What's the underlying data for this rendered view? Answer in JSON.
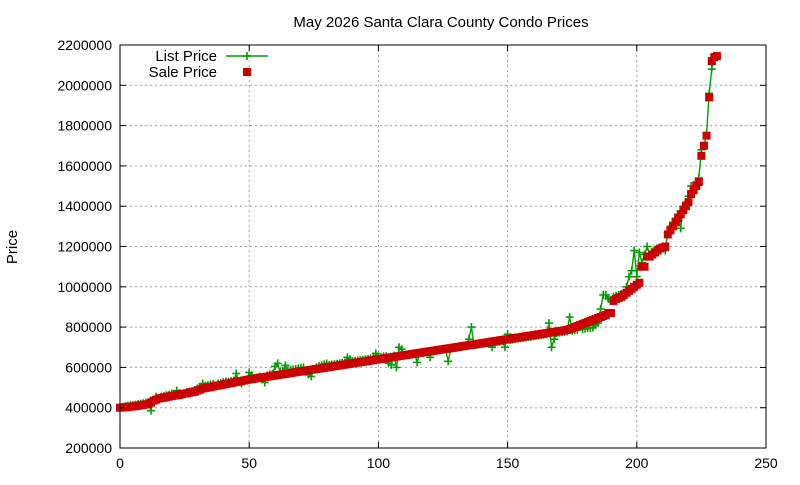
{
  "chart_data": {
    "type": "line",
    "title": "May 2026 Santa Clara County Condo Prices",
    "xlabel": "",
    "ylabel": "Price",
    "xlim": [
      0,
      250
    ],
    "ylim": [
      200000,
      2200000
    ],
    "x_ticks": [
      0,
      50,
      100,
      150,
      200,
      250
    ],
    "y_ticks": [
      200000,
      400000,
      600000,
      800000,
      1000000,
      1200000,
      1400000,
      1600000,
      1800000,
      2000000,
      2200000
    ],
    "grid": true,
    "legend_position": "top-left",
    "series": [
      {
        "name": "List Price",
        "style": "line-with-plus-markers",
        "color": "#009e00",
        "values": [
          400000,
          405000,
          408000,
          410000,
          412000,
          413000,
          415000,
          418000,
          420000,
          422000,
          425000,
          428000,
          385000,
          440000,
          455000,
          448000,
          455000,
          458000,
          462000,
          465000,
          470000,
          468000,
          485000,
          472000,
          462000,
          470000,
          478000,
          480000,
          482000,
          488000,
          495000,
          500000,
          520000,
          508000,
          512000,
          515000,
          518000,
          505000,
          520000,
          522000,
          528000,
          530000,
          528000,
          532000,
          533000,
          570000,
          530000,
          520000,
          535000,
          540000,
          575000,
          560000,
          548000,
          550000,
          555000,
          552000,
          525000,
          560000,
          565000,
          568000,
          605000,
          620000,
          578000,
          582000,
          610000,
          585000,
          588000,
          590000,
          592000,
          595000,
          598000,
          600000,
          578000,
          565000,
          555000,
          590000,
          600000,
          608000,
          610000,
          615000,
          620000,
          612000,
          614000,
          616000,
          618000,
          620000,
          622000,
          624000,
          650000,
          640000,
          630000,
          632000,
          634000,
          636000,
          638000,
          640000,
          642000,
          644000,
          646000,
          670000,
          650000,
          652000,
          654000,
          656000,
          620000,
          612000,
          658000,
          600000,
          700000,
          690000,
          662000,
          664000,
          666000,
          668000,
          670000,
          625000,
          672000,
          674000,
          676000,
          678000,
          650000,
          680000,
          682000,
          684000,
          686000,
          688000,
          690000,
          630000,
          692000,
          694000,
          696000,
          700000,
          702000,
          704000,
          706000,
          740000,
          800000,
          710000,
          712000,
          714000,
          716000,
          718000,
          720000,
          722000,
          700000,
          724000,
          726000,
          728000,
          730000,
          700000,
          765000,
          736000,
          738000,
          740000,
          742000,
          744000,
          746000,
          748000,
          750000,
          752000,
          754000,
          756000,
          758000,
          760000,
          762000,
          764000,
          820000,
          700000,
          740000,
          770000,
          772000,
          774000,
          776000,
          778000,
          850000,
          782000,
          784000,
          786000,
          800000,
          790000,
          792000,
          794000,
          796000,
          798000,
          810000,
          820000,
          890000,
          960000,
          960000,
          940000,
          930000,
          950000,
          955000,
          960000,
          965000,
          970000,
          1000000,
          1050000,
          1080000,
          1180000,
          1050000,
          1170000,
          1120000,
          1160000,
          1200000,
          1160000,
          1175000,
          1185000,
          1190000,
          1195000,
          1200000,
          1180000,
          1270000,
          1300000,
          1320000,
          1340000,
          1360000,
          1290000,
          1400000,
          1420000,
          1450000,
          1500000,
          1500000,
          1520000,
          1540000,
          1680000,
          1700000,
          1760000,
          1960000,
          2080000,
          2140000,
          2140000
        ]
      },
      {
        "name": "Sale Price",
        "style": "square-markers",
        "color": "#cc0000",
        "values": [
          400000,
          401000,
          402000,
          403000,
          405000,
          406000,
          408000,
          410000,
          412000,
          414000,
          416000,
          418000,
          425000,
          435000,
          440000,
          445000,
          448000,
          450000,
          452000,
          455000,
          458000,
          460000,
          462000,
          465000,
          467000,
          470000,
          472000,
          475000,
          478000,
          480000,
          485000,
          490000,
          495000,
          498000,
          500000,
          502000,
          505000,
          508000,
          510000,
          512000,
          515000,
          518000,
          520000,
          522000,
          525000,
          528000,
          530000,
          532000,
          535000,
          538000,
          540000,
          542000,
          544000,
          546000,
          548000,
          550000,
          552000,
          554000,
          556000,
          558000,
          560000,
          562000,
          564000,
          566000,
          568000,
          570000,
          572000,
          574000,
          576000,
          578000,
          580000,
          582000,
          584000,
          586000,
          588000,
          590000,
          592000,
          594000,
          596000,
          598000,
          600000,
          602000,
          604000,
          606000,
          608000,
          610000,
          612000,
          614000,
          616000,
          618000,
          620000,
          622000,
          624000,
          626000,
          628000,
          630000,
          632000,
          634000,
          636000,
          638000,
          640000,
          642000,
          644000,
          646000,
          648000,
          650000,
          652000,
          654000,
          656000,
          658000,
          660000,
          662000,
          664000,
          666000,
          668000,
          670000,
          672000,
          674000,
          676000,
          678000,
          680000,
          682000,
          684000,
          686000,
          688000,
          690000,
          692000,
          694000,
          696000,
          698000,
          700000,
          702000,
          704000,
          706000,
          708000,
          710000,
          712000,
          714000,
          716000,
          718000,
          720000,
          722000,
          724000,
          726000,
          728000,
          730000,
          732000,
          734000,
          736000,
          738000,
          740000,
          742000,
          744000,
          746000,
          748000,
          750000,
          752000,
          754000,
          756000,
          758000,
          760000,
          762000,
          764000,
          766000,
          768000,
          770000,
          772000,
          774000,
          776000,
          778000,
          780000,
          782000,
          784000,
          786000,
          790000,
          795000,
          800000,
          805000,
          810000,
          815000,
          820000,
          825000,
          830000,
          835000,
          840000,
          845000,
          850000,
          855000,
          860000,
          870000,
          870000,
          930000,
          940000,
          945000,
          950000,
          960000,
          970000,
          980000,
          990000,
          1000000,
          1010000,
          1020000,
          1100000,
          1100000,
          1150000,
          1150000,
          1160000,
          1170000,
          1180000,
          1190000,
          1195000,
          1200000,
          1260000,
          1280000,
          1300000,
          1320000,
          1340000,
          1360000,
          1380000,
          1400000,
          1420000,
          1460000,
          1480000,
          1500000,
          1520000,
          1650000,
          1700000,
          1750000,
          1940000,
          2120000,
          2140000,
          2145000
        ]
      }
    ]
  }
}
